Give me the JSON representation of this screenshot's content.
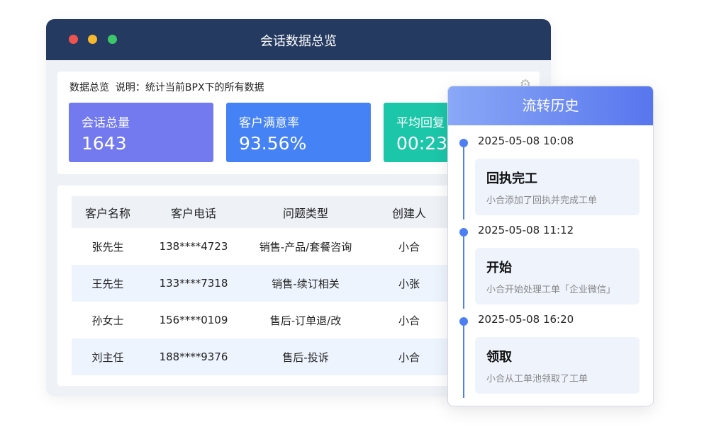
{
  "window": {
    "title": "会话数据总览",
    "traffic_lights": [
      "#ef5350",
      "#f5b82e",
      "#3cc76a"
    ]
  },
  "overview": {
    "description": "数据总览  说明：统计当前BPX下的所有数据",
    "settings_icon": "gear-icon",
    "stats": [
      {
        "label": "会话总量",
        "value": "1643",
        "color": "#7379ef"
      },
      {
        "label": "客户满意率",
        "value": "93.56%",
        "color": "#4582f5"
      },
      {
        "label": "平均回复",
        "value": "00:23",
        "color": "#1cc6a9"
      }
    ]
  },
  "table": {
    "headers": [
      "客户名称",
      "客户电话",
      "问题类型",
      "创建人"
    ],
    "rows": [
      [
        "张先生",
        "138****4723",
        "销售-产品/套餐咨询",
        "小合"
      ],
      [
        "王先生",
        "133****7318",
        "销售-续订相关",
        "小张"
      ],
      [
        "孙女士",
        "156****0109",
        "售后-订单退/改",
        "小合"
      ],
      [
        "刘主任",
        "188****9376",
        "售后-投诉",
        "小合"
      ]
    ]
  },
  "history": {
    "title": "流转历史",
    "events": [
      {
        "time": "2025-05-08  10:08",
        "title": "回执完工",
        "desc": "小合添加了回执并完成工单"
      },
      {
        "time": "2025-05-08  11:12",
        "title": "开始",
        "desc": "小合开始处理工单「企业微信」"
      },
      {
        "time": "2025-05-08  16:20",
        "title": "领取",
        "desc": "小合从工单池领取了工单"
      }
    ]
  }
}
